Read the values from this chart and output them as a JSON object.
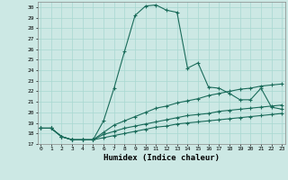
{
  "title": "",
  "xlabel": "Humidex (Indice chaleur)",
  "ylabel": "",
  "bg_color": "#cce8e4",
  "grid_color": "#a8d8d0",
  "line_color": "#1a6b5a",
  "x_ticks": [
    0,
    1,
    2,
    3,
    4,
    5,
    6,
    7,
    8,
    9,
    10,
    11,
    12,
    13,
    14,
    15,
    16,
    17,
    18,
    19,
    20,
    21,
    22,
    23
  ],
  "ylim": [
    17,
    30.5
  ],
  "xlim": [
    -0.3,
    23.3
  ],
  "yticks": [
    17,
    18,
    19,
    20,
    21,
    22,
    23,
    24,
    25,
    26,
    27,
    28,
    29,
    30
  ],
  "series": [
    {
      "x": [
        0,
        1,
        2,
        3,
        4,
        5,
        6,
        7,
        8,
        9,
        10,
        11,
        12,
        13,
        14,
        15,
        16,
        17,
        18,
        19,
        20,
        21,
        22,
        23
      ],
      "y": [
        18.5,
        18.5,
        17.7,
        17.4,
        17.4,
        17.4,
        19.2,
        22.3,
        25.8,
        29.2,
        30.1,
        30.2,
        29.7,
        29.5,
        24.2,
        24.7,
        22.4,
        22.3,
        21.8,
        21.2,
        21.2,
        22.3,
        20.5,
        20.3
      ]
    },
    {
      "x": [
        0,
        1,
        2,
        3,
        4,
        5,
        6,
        7,
        8,
        9,
        10,
        11,
        12,
        13,
        14,
        15,
        16,
        17,
        18,
        19,
        20,
        21,
        22,
        23
      ],
      "y": [
        18.5,
        18.5,
        17.7,
        17.4,
        17.4,
        17.4,
        18.1,
        18.8,
        19.2,
        19.6,
        20.0,
        20.4,
        20.6,
        20.9,
        21.1,
        21.3,
        21.6,
        21.8,
        22.0,
        22.2,
        22.3,
        22.5,
        22.6,
        22.7
      ]
    },
    {
      "x": [
        0,
        1,
        2,
        3,
        4,
        5,
        6,
        7,
        8,
        9,
        10,
        11,
        12,
        13,
        14,
        15,
        16,
        17,
        18,
        19,
        20,
        21,
        22,
        23
      ],
      "y": [
        18.5,
        18.5,
        17.7,
        17.4,
        17.4,
        17.4,
        17.9,
        18.2,
        18.5,
        18.7,
        18.9,
        19.1,
        19.3,
        19.5,
        19.7,
        19.8,
        19.9,
        20.1,
        20.2,
        20.3,
        20.4,
        20.5,
        20.6,
        20.7
      ]
    },
    {
      "x": [
        0,
        1,
        2,
        3,
        4,
        5,
        6,
        7,
        8,
        9,
        10,
        11,
        12,
        13,
        14,
        15,
        16,
        17,
        18,
        19,
        20,
        21,
        22,
        23
      ],
      "y": [
        18.5,
        18.5,
        17.7,
        17.4,
        17.4,
        17.4,
        17.6,
        17.8,
        18.0,
        18.2,
        18.4,
        18.6,
        18.7,
        18.9,
        19.0,
        19.1,
        19.2,
        19.3,
        19.4,
        19.5,
        19.6,
        19.7,
        19.8,
        19.9
      ]
    }
  ]
}
